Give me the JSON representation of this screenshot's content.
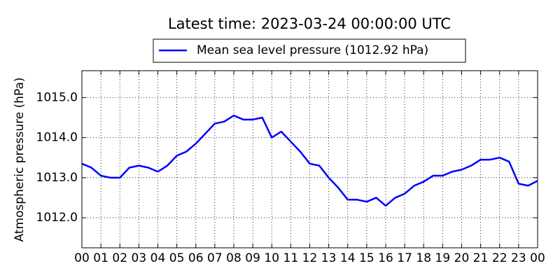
{
  "chart_data": {
    "type": "line",
    "title": "Latest time: 2023-03-24 00:00:00 UTC",
    "y_label": "Atmospheric pressure (hPa)",
    "x": [
      0,
      0.5,
      1,
      1.5,
      2,
      2.5,
      3,
      3.5,
      4,
      4.5,
      5,
      5.5,
      6,
      6.5,
      7,
      7.5,
      8,
      8.5,
      9,
      9.5,
      10,
      10.5,
      11,
      11.5,
      12,
      12.5,
      13,
      13.5,
      14,
      14.5,
      15,
      15.5,
      16,
      16.5,
      17,
      17.5,
      18,
      18.5,
      19,
      19.5,
      20,
      20.5,
      21,
      21.5,
      22,
      22.5,
      23,
      23.5,
      24
    ],
    "series": [
      {
        "name": "Mean sea level pressure (1012.92 hPa)",
        "color": "#0000ff",
        "values": [
          1013.35,
          1013.25,
          1013.05,
          1013.0,
          1013.0,
          1013.25,
          1013.3,
          1013.25,
          1013.15,
          1013.3,
          1013.55,
          1013.65,
          1013.85,
          1014.1,
          1014.35,
          1014.4,
          1014.55,
          1014.45,
          1014.45,
          1014.5,
          1014.0,
          1014.15,
          1013.9,
          1013.65,
          1013.35,
          1013.3,
          1013.0,
          1012.75,
          1012.45,
          1012.45,
          1012.4,
          1012.5,
          1012.3,
          1012.5,
          1012.6,
          1012.8,
          1012.9,
          1013.05,
          1013.05,
          1013.15,
          1013.2,
          1013.3,
          1013.45,
          1013.45,
          1013.5,
          1013.4,
          1012.85,
          1012.8,
          1012.92
        ]
      }
    ],
    "xlim": [
      0,
      24
    ],
    "xticks": [
      {
        "value": 0,
        "label": "00"
      },
      {
        "value": 1,
        "label": "01"
      },
      {
        "value": 2,
        "label": "02"
      },
      {
        "value": 3,
        "label": "03"
      },
      {
        "value": 4,
        "label": "04"
      },
      {
        "value": 5,
        "label": "05"
      },
      {
        "value": 6,
        "label": "06"
      },
      {
        "value": 7,
        "label": "07"
      },
      {
        "value": 8,
        "label": "08"
      },
      {
        "value": 9,
        "label": "09"
      },
      {
        "value": 10,
        "label": "10"
      },
      {
        "value": 11,
        "label": "11"
      },
      {
        "value": 12,
        "label": "12"
      },
      {
        "value": 13,
        "label": "13"
      },
      {
        "value": 14,
        "label": "14"
      },
      {
        "value": 15,
        "label": "15"
      },
      {
        "value": 16,
        "label": "16"
      },
      {
        "value": 17,
        "label": "17"
      },
      {
        "value": 18,
        "label": "18"
      },
      {
        "value": 19,
        "label": "19"
      },
      {
        "value": 20,
        "label": "20"
      },
      {
        "value": 21,
        "label": "21"
      },
      {
        "value": 22,
        "label": "22"
      },
      {
        "value": 23,
        "label": "23"
      },
      {
        "value": 24,
        "label": "00"
      }
    ],
    "ylim": [
      1011.25,
      1015.67
    ],
    "yticks": [
      {
        "value": 1012,
        "label": "1012.0"
      },
      {
        "value": 1013,
        "label": "1013.0"
      },
      {
        "value": 1014,
        "label": "1014.0"
      },
      {
        "value": 1015,
        "label": "1015.0"
      }
    ],
    "grid": true
  }
}
